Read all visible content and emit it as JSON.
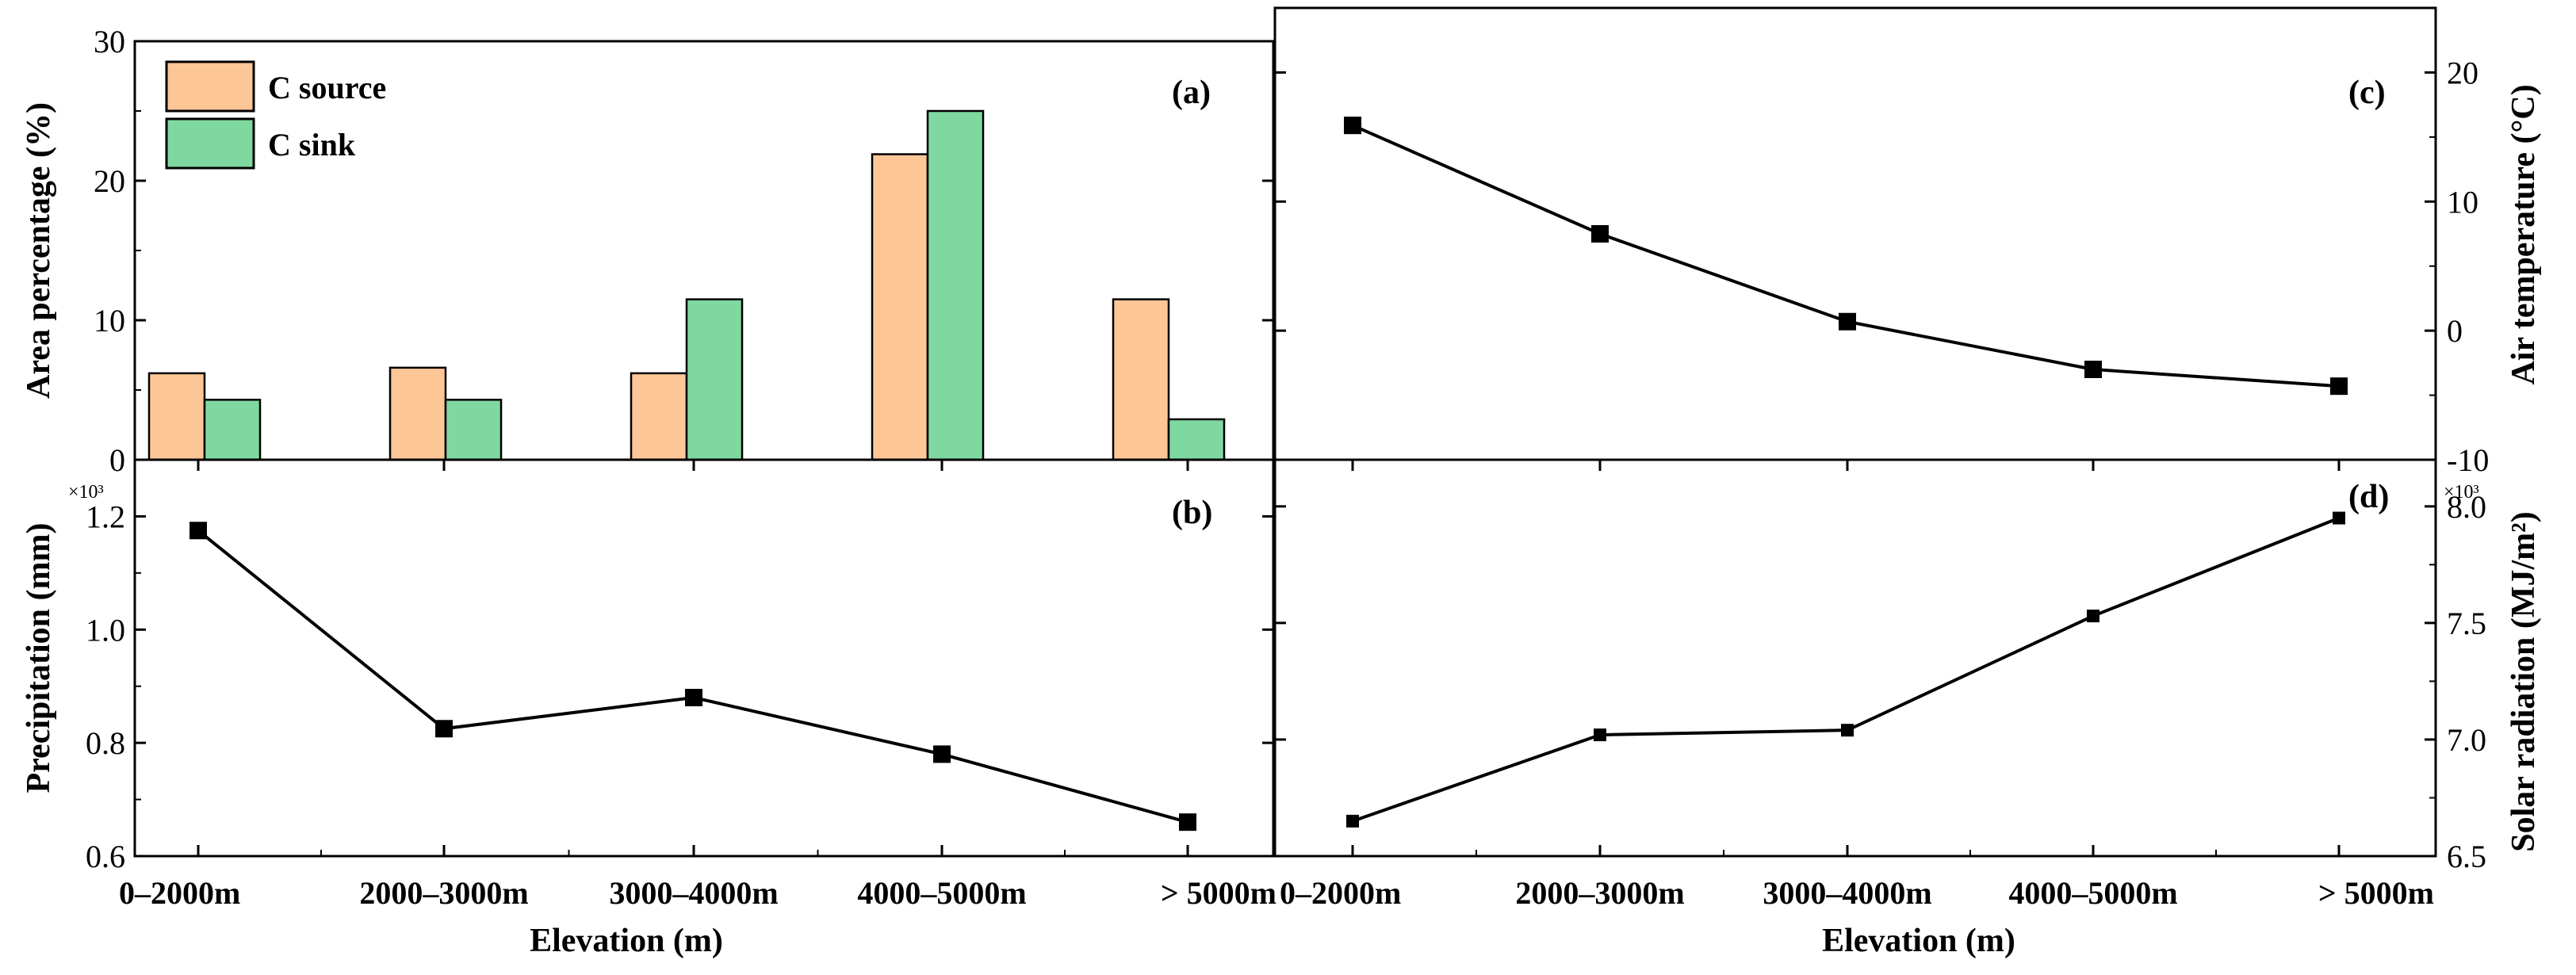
{
  "chart_data": [
    {
      "panel": "(a)",
      "type": "bar",
      "categories": [
        "0–2000m",
        "2000–3000m",
        "3000–4000m",
        "4000–5000m",
        "> 5000m"
      ],
      "ylabel": "Area percentage (%)",
      "ylim": [
        0,
        30
      ],
      "yticks": [
        0,
        10,
        20,
        30
      ],
      "legend_position": "top-left",
      "series": [
        {
          "name": "C source",
          "color": "#fdc697",
          "values": [
            6.2,
            6.6,
            6.2,
            21.9,
            11.5
          ]
        },
        {
          "name": "C sink",
          "color": "#7fd8a0",
          "values": [
            4.3,
            4.3,
            11.5,
            25.0,
            2.9
          ]
        }
      ]
    },
    {
      "panel": "(b)",
      "type": "line",
      "categories": [
        "0–2000m",
        "2000–3000m",
        "3000–4000m",
        "4000–5000m",
        "> 5000m"
      ],
      "xlabel": "Elevation (m)",
      "ylabel": "Precipitation (mm)",
      "multiplier_label": "×10³",
      "ylim": [
        0.6,
        1.3
      ],
      "yticks": [
        0.6,
        0.8,
        1.0,
        1.2
      ],
      "ytick_labels": [
        "0.6",
        "0.8",
        "1.0",
        "1.2"
      ],
      "series": [
        {
          "name": "Precipitation",
          "values": [
            1.175,
            0.825,
            0.88,
            0.78,
            0.66
          ]
        }
      ]
    },
    {
      "panel": "(c)",
      "type": "line",
      "categories": [
        "0–2000m",
        "2000–3000m",
        "3000–4000m",
        "4000–5000m",
        "> 5000m"
      ],
      "ylabel": "Air temperature (°C)",
      "ylim": [
        -10,
        25
      ],
      "yticks": [
        -10,
        0,
        10,
        20
      ],
      "series": [
        {
          "name": "Air temperature",
          "values": [
            15.9,
            7.5,
            0.7,
            -3.0,
            -4.3
          ]
        }
      ]
    },
    {
      "panel": "(d)",
      "type": "line",
      "categories": [
        "0–2000m",
        "2000–3000m",
        "3000–4000m",
        "4000–5000m",
        "> 5000m"
      ],
      "xlabel": "Elevation (m)",
      "ylabel": "Solar radiation (MJ/m²)",
      "multiplier_label": "×10³",
      "ylim": [
        6.5,
        8.2
      ],
      "yticks": [
        6.5,
        7.0,
        7.5,
        8.0
      ],
      "ytick_labels": [
        "6.5",
        "7.0",
        "7.5",
        "8.0"
      ],
      "series": [
        {
          "name": "Solar radiation",
          "values": [
            6.65,
            7.02,
            7.04,
            7.53,
            7.95
          ]
        }
      ]
    }
  ]
}
